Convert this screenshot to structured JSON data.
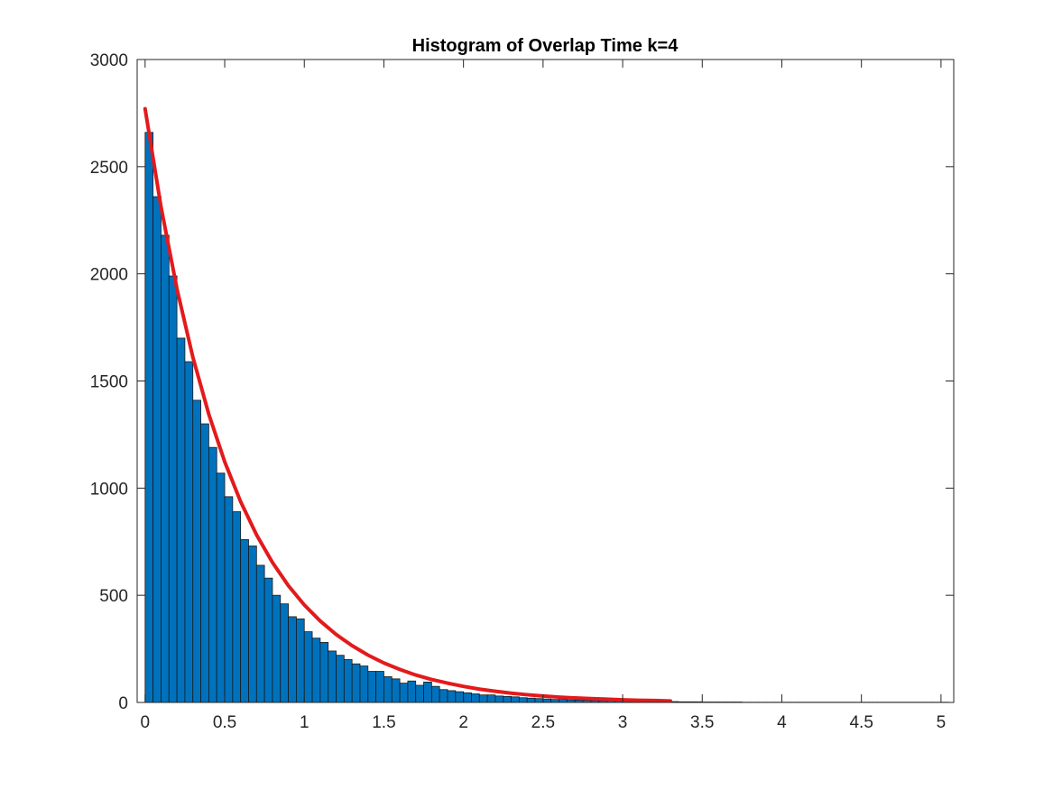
{
  "chart_data": {
    "type": "bar",
    "title": "Histogram of Overlap Time k=4",
    "xlabel": "",
    "ylabel": "",
    "xlim": [
      -0.05,
      5.08
    ],
    "ylim": [
      0,
      3000
    ],
    "xticks": [
      0,
      0.5,
      1,
      1.5,
      2,
      2.5,
      3,
      3.5,
      4,
      4.5,
      5
    ],
    "xtick_labels": [
      "0",
      "0.5",
      "1",
      "1.5",
      "2",
      "2.5",
      "3",
      "3.5",
      "4",
      "4.5",
      "5"
    ],
    "yticks": [
      0,
      500,
      1000,
      1500,
      2000,
      2500,
      3000
    ],
    "ytick_labels": [
      "0",
      "500",
      "1000",
      "1500",
      "2000",
      "2500",
      "3000"
    ],
    "grid": false,
    "bin_width": 0.05,
    "bin_centers": [
      0.025,
      0.075,
      0.125,
      0.175,
      0.225,
      0.275,
      0.325,
      0.375,
      0.425,
      0.475,
      0.525,
      0.575,
      0.625,
      0.675,
      0.725,
      0.775,
      0.825,
      0.875,
      0.925,
      0.975,
      1.025,
      1.075,
      1.125,
      1.175,
      1.225,
      1.275,
      1.325,
      1.375,
      1.425,
      1.475,
      1.525,
      1.575,
      1.625,
      1.675,
      1.725,
      1.775,
      1.825,
      1.875,
      1.925,
      1.975,
      2.025,
      2.075,
      2.125,
      2.175,
      2.225,
      2.275,
      2.325,
      2.375,
      2.425,
      2.475,
      2.525,
      2.575,
      2.625,
      2.675,
      2.725,
      2.775,
      2.825,
      2.875,
      2.925,
      2.975,
      3.025,
      3.075,
      3.125,
      3.175,
      3.225,
      3.275,
      3.325,
      3.375,
      3.425,
      3.475,
      3.525,
      3.575,
      3.625,
      3.675,
      3.725,
      3.775,
      3.825,
      3.875,
      3.925,
      3.975,
      4.025,
      4.075,
      4.125,
      4.175,
      4.225,
      4.275,
      4.325,
      4.375,
      4.425,
      4.475,
      4.525,
      4.575,
      4.625,
      4.675,
      4.725,
      4.775,
      4.825,
      4.875,
      4.925,
      4.975,
      5.025
    ],
    "counts": [
      2660,
      2360,
      2180,
      1990,
      1700,
      1590,
      1410,
      1300,
      1190,
      1070,
      960,
      890,
      760,
      730,
      640,
      580,
      500,
      460,
      400,
      390,
      330,
      300,
      280,
      240,
      220,
      200,
      180,
      170,
      145,
      145,
      120,
      110,
      90,
      100,
      80,
      95,
      75,
      60,
      55,
      50,
      45,
      40,
      35,
      35,
      30,
      28,
      26,
      22,
      20,
      18,
      16,
      14,
      14,
      12,
      11,
      10,
      9,
      8,
      8,
      7,
      6,
      6,
      5,
      5,
      4,
      4,
      4,
      3,
      3,
      3,
      2,
      2,
      2,
      2,
      2,
      1,
      1,
      1,
      1,
      1,
      1,
      1,
      1,
      1,
      1,
      1,
      1,
      1,
      1,
      1,
      1,
      1,
      1,
      1,
      1,
      1,
      1,
      1,
      1,
      1,
      1
    ],
    "bar_color": "#0072BD",
    "bar_edge_color": "#1a1a1a",
    "fit_line": {
      "type": "line",
      "color": "#E31A1C",
      "x": [
        0.0,
        0.1,
        0.2,
        0.3,
        0.4,
        0.5,
        0.6,
        0.7,
        0.8,
        0.9,
        1.0,
        1.1,
        1.2,
        1.3,
        1.4,
        1.5,
        1.6,
        1.7,
        1.8,
        1.9,
        2.0,
        2.1,
        2.2,
        2.3,
        2.4,
        2.5,
        2.6,
        2.7,
        2.8,
        2.9,
        3.0,
        3.1,
        3.2,
        3.3
      ],
      "y": [
        2770,
        2312,
        1930,
        1611,
        1345,
        1123,
        937,
        782,
        653,
        545,
        455,
        380,
        317,
        265,
        221,
        184,
        154,
        128,
        107,
        90,
        75,
        62,
        52,
        43,
        36,
        30,
        25,
        21,
        18,
        15,
        12,
        10,
        9,
        7
      ]
    }
  }
}
